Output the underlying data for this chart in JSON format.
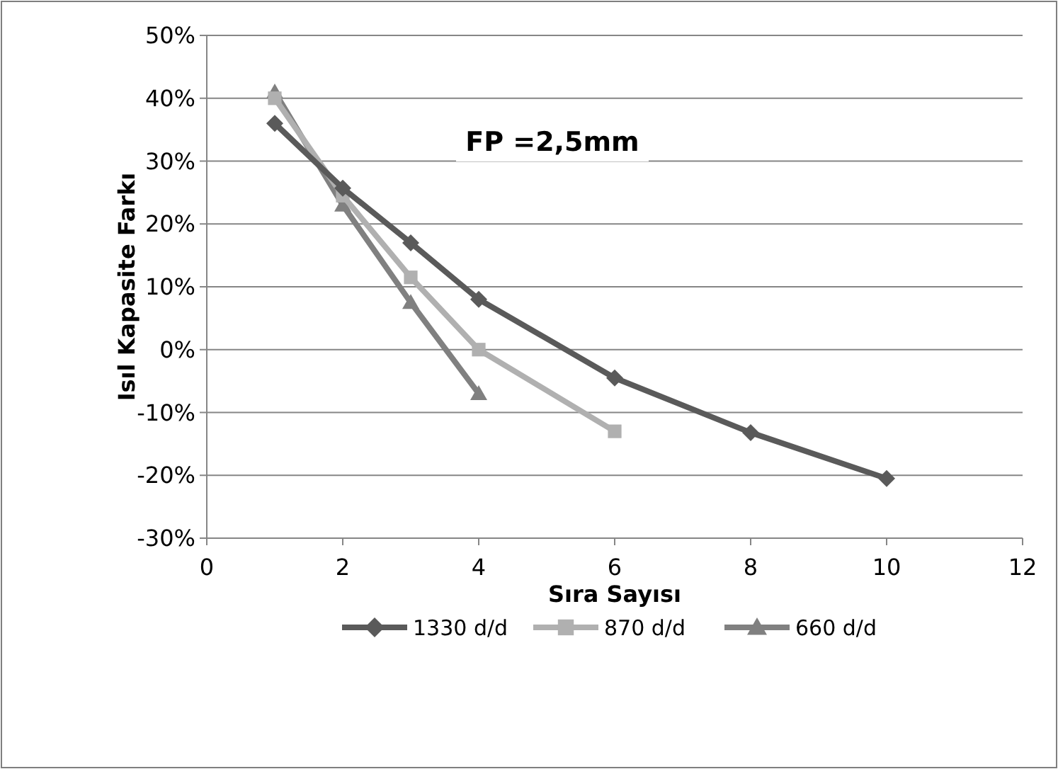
{
  "chart_data": {
    "type": "line",
    "xlabel": "Sıra Sayısı",
    "ylabel": "Isıl Kapasite Farkı",
    "annotations": [
      "FP =2,5mm"
    ],
    "xlim": [
      0,
      12
    ],
    "xticks": [
      0,
      2,
      4,
      6,
      8,
      10,
      12
    ],
    "ylim": [
      -30,
      50
    ],
    "yticks": [
      {
        "value": -30,
        "label": "-30%"
      },
      {
        "value": -20,
        "label": "-20%"
      },
      {
        "value": -10,
        "label": "-10%"
      },
      {
        "value": 0,
        "label": "0%"
      },
      {
        "value": 10,
        "label": "10%"
      },
      {
        "value": 20,
        "label": "20%"
      },
      {
        "value": 30,
        "label": "30%"
      },
      {
        "value": 40,
        "label": "40%"
      },
      {
        "value": 50,
        "label": "50%"
      }
    ],
    "grid": "y",
    "legend": "bottom",
    "series": [
      {
        "name": "1330 d/d",
        "color": "#5a5a5a",
        "marker": "diamond",
        "x": [
          1,
          2,
          3,
          4,
          6,
          8,
          10
        ],
        "values": [
          36,
          25.7,
          17,
          8,
          -4.5,
          -13.2,
          -20.5
        ]
      },
      {
        "name": "870 d/d",
        "color": "#b0b0b0",
        "marker": "square",
        "x": [
          1,
          2,
          3,
          4,
          6
        ],
        "values": [
          40,
          24.5,
          11.5,
          0,
          -13
        ]
      },
      {
        "name": "660 d/d",
        "color": "#808080",
        "marker": "triangle",
        "x": [
          1,
          2,
          3,
          4
        ],
        "values": [
          41,
          23,
          7.5,
          -7
        ]
      }
    ]
  }
}
